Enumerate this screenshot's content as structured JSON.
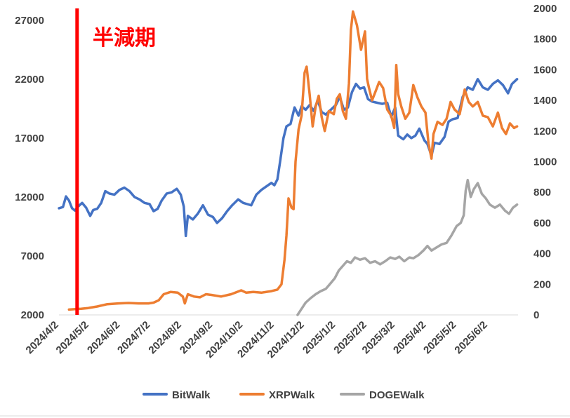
{
  "chart_data": {
    "type": "line",
    "title": "",
    "xlabel": "",
    "ylabel": "",
    "y2label": "",
    "x_tick_labels": [
      "2024/4/2",
      "2024/5/2",
      "2024/6/2",
      "2024/7/2",
      "2024/8/2",
      "2024/9/2",
      "2024/10/2",
      "2024/11/2",
      "2024/12/2",
      "2025/1/2",
      "2025/2/2",
      "2025/3/2",
      "2025/4/2",
      "2025/5/2",
      "2025/6/2"
    ],
    "x_range": [
      "2024-04-02",
      "2025-07-02"
    ],
    "y_left": {
      "range": [
        2000,
        28000
      ],
      "ticks": [
        2000,
        7000,
        12000,
        17000,
        22000,
        27000
      ],
      "tick_labels": [
        "2000",
        "7000",
        "12000",
        "17000",
        "22000",
        "27000"
      ]
    },
    "y_right": {
      "range": [
        0,
        2000
      ],
      "ticks": [
        0,
        200,
        400,
        600,
        800,
        1000,
        1200,
        1400,
        1600,
        1800,
        2000
      ],
      "tick_labels": [
        "0",
        "200",
        "400",
        "600",
        "800",
        "1000",
        "1200",
        "1400",
        "1600",
        "1800",
        "2000"
      ]
    },
    "grid": false,
    "legend": "bottom",
    "annotation": {
      "text": "半減期",
      "date": "2024-04-20",
      "color": "#ff0000"
    },
    "series": [
      {
        "name": "BitWalk",
        "axis": "left",
        "color": "#4472c4",
        "points": [
          [
            "2024-04-02",
            11050
          ],
          [
            "2024-04-06",
            11150
          ],
          [
            "2024-04-09",
            12050
          ],
          [
            "2024-04-12",
            11700
          ],
          [
            "2024-04-15",
            11050
          ],
          [
            "2024-04-18",
            10850
          ],
          [
            "2024-04-21",
            11200
          ],
          [
            "2024-04-25",
            11500
          ],
          [
            "2024-04-29",
            11100
          ],
          [
            "2024-05-03",
            10400
          ],
          [
            "2024-05-06",
            10900
          ],
          [
            "2024-05-10",
            11000
          ],
          [
            "2024-05-14",
            11500
          ],
          [
            "2024-05-18",
            12500
          ],
          [
            "2024-05-22",
            12300
          ],
          [
            "2024-05-27",
            12200
          ],
          [
            "2024-06-01",
            12600
          ],
          [
            "2024-06-06",
            12800
          ],
          [
            "2024-06-11",
            12500
          ],
          [
            "2024-06-16",
            12000
          ],
          [
            "2024-06-21",
            11800
          ],
          [
            "2024-06-26",
            11500
          ],
          [
            "2024-07-01",
            11400
          ],
          [
            "2024-07-05",
            10800
          ],
          [
            "2024-07-09",
            11000
          ],
          [
            "2024-07-13",
            11700
          ],
          [
            "2024-07-18",
            12300
          ],
          [
            "2024-07-23",
            12400
          ],
          [
            "2024-07-28",
            12700
          ],
          [
            "2024-08-01",
            12200
          ],
          [
            "2024-08-04",
            11200
          ],
          [
            "2024-08-06",
            8700
          ],
          [
            "2024-08-08",
            10400
          ],
          [
            "2024-08-13",
            10100
          ],
          [
            "2024-08-18",
            10600
          ],
          [
            "2024-08-23",
            11300
          ],
          [
            "2024-08-28",
            10500
          ],
          [
            "2024-09-02",
            10300
          ],
          [
            "2024-09-06",
            9800
          ],
          [
            "2024-09-11",
            10200
          ],
          [
            "2024-09-16",
            10800
          ],
          [
            "2024-09-21",
            11300
          ],
          [
            "2024-09-27",
            11800
          ],
          [
            "2024-10-02",
            11500
          ],
          [
            "2024-10-06",
            11400
          ],
          [
            "2024-10-10",
            11300
          ],
          [
            "2024-10-15",
            12200
          ],
          [
            "2024-10-20",
            12600
          ],
          [
            "2024-10-25",
            12900
          ],
          [
            "2024-10-30",
            13200
          ],
          [
            "2024-11-02",
            13000
          ],
          [
            "2024-11-05",
            13500
          ],
          [
            "2024-11-08",
            15200
          ],
          [
            "2024-11-11",
            17000
          ],
          [
            "2024-11-14",
            18000
          ],
          [
            "2024-11-18",
            18200
          ],
          [
            "2024-11-22",
            19600
          ],
          [
            "2024-11-26",
            18900
          ],
          [
            "2024-11-29",
            19700
          ],
          [
            "2024-12-03",
            19400
          ],
          [
            "2024-12-07",
            19800
          ],
          [
            "2024-12-11",
            19300
          ],
          [
            "2024-12-15",
            20200
          ],
          [
            "2024-12-19",
            19200
          ],
          [
            "2024-12-23",
            19000
          ],
          [
            "2024-12-28",
            19400
          ],
          [
            "2025-01-02",
            19800
          ],
          [
            "2025-01-06",
            20500
          ],
          [
            "2025-01-10",
            19400
          ],
          [
            "2025-01-14",
            19600
          ],
          [
            "2025-01-18",
            20900
          ],
          [
            "2025-01-22",
            21600
          ],
          [
            "2025-01-26",
            21200
          ],
          [
            "2025-01-30",
            21300
          ],
          [
            "2025-02-03",
            20300
          ],
          [
            "2025-02-07",
            20100
          ],
          [
            "2025-02-12",
            20000
          ],
          [
            "2025-02-17",
            19900
          ],
          [
            "2025-02-22",
            20000
          ],
          [
            "2025-02-26",
            18800
          ],
          [
            "2025-03-02",
            19600
          ],
          [
            "2025-03-05",
            17200
          ],
          [
            "2025-03-10",
            16900
          ],
          [
            "2025-03-14",
            17300
          ],
          [
            "2025-03-18",
            17000
          ],
          [
            "2025-03-22",
            17200
          ],
          [
            "2025-03-26",
            17800
          ],
          [
            "2025-03-31",
            16800
          ],
          [
            "2025-04-03",
            16500
          ],
          [
            "2025-04-07",
            15500
          ],
          [
            "2025-04-10",
            16600
          ],
          [
            "2025-04-15",
            16500
          ],
          [
            "2025-04-20",
            17100
          ],
          [
            "2025-04-24",
            18400
          ],
          [
            "2025-04-28",
            18600
          ],
          [
            "2025-05-03",
            18700
          ],
          [
            "2025-05-08",
            20500
          ],
          [
            "2025-05-13",
            21300
          ],
          [
            "2025-05-18",
            21100
          ],
          [
            "2025-05-23",
            22000
          ],
          [
            "2025-05-28",
            21300
          ],
          [
            "2025-06-02",
            21100
          ],
          [
            "2025-06-07",
            21600
          ],
          [
            "2025-06-12",
            21900
          ],
          [
            "2025-06-17",
            21500
          ],
          [
            "2025-06-22",
            20800
          ],
          [
            "2025-06-26",
            21600
          ],
          [
            "2025-07-01",
            22000
          ]
        ]
      },
      {
        "name": "XRPWalk",
        "axis": "right",
        "color": "#ed7d31",
        "points": [
          [
            "2024-04-12",
            35
          ],
          [
            "2024-04-18",
            38
          ],
          [
            "2024-04-24",
            40
          ],
          [
            "2024-05-01",
            45
          ],
          [
            "2024-05-10",
            55
          ],
          [
            "2024-05-20",
            70
          ],
          [
            "2024-05-31",
            75
          ],
          [
            "2024-06-10",
            78
          ],
          [
            "2024-06-20",
            75
          ],
          [
            "2024-06-30",
            75
          ],
          [
            "2024-07-05",
            80
          ],
          [
            "2024-07-10",
            95
          ],
          [
            "2024-07-15",
            135
          ],
          [
            "2024-07-22",
            150
          ],
          [
            "2024-07-29",
            145
          ],
          [
            "2024-08-03",
            120
          ],
          [
            "2024-08-05",
            75
          ],
          [
            "2024-08-08",
            135
          ],
          [
            "2024-08-14",
            120
          ],
          [
            "2024-08-20",
            115
          ],
          [
            "2024-08-26",
            135
          ],
          [
            "2024-09-01",
            130
          ],
          [
            "2024-09-10",
            120
          ],
          [
            "2024-09-20",
            135
          ],
          [
            "2024-09-30",
            160
          ],
          [
            "2024-10-05",
            145
          ],
          [
            "2024-10-12",
            150
          ],
          [
            "2024-10-20",
            145
          ],
          [
            "2024-10-30",
            155
          ],
          [
            "2024-11-05",
            165
          ],
          [
            "2024-11-09",
            200
          ],
          [
            "2024-11-12",
            360
          ],
          [
            "2024-11-14",
            520
          ],
          [
            "2024-11-16",
            760
          ],
          [
            "2024-11-19",
            700
          ],
          [
            "2024-11-21",
            690
          ],
          [
            "2024-11-23",
            1000
          ],
          [
            "2024-11-26",
            1210
          ],
          [
            "2024-11-29",
            1300
          ],
          [
            "2024-12-02",
            1580
          ],
          [
            "2024-12-04",
            1620
          ],
          [
            "2024-12-07",
            1440
          ],
          [
            "2024-12-10",
            1230
          ],
          [
            "2024-12-13",
            1360
          ],
          [
            "2024-12-16",
            1430
          ],
          [
            "2024-12-19",
            1290
          ],
          [
            "2024-12-22",
            1200
          ],
          [
            "2024-12-26",
            1330
          ],
          [
            "2024-12-31",
            1310
          ],
          [
            "2025-01-03",
            1410
          ],
          [
            "2025-01-06",
            1440
          ],
          [
            "2025-01-09",
            1330
          ],
          [
            "2025-01-12",
            1280
          ],
          [
            "2025-01-15",
            1510
          ],
          [
            "2025-01-17",
            1860
          ],
          [
            "2025-01-19",
            1980
          ],
          [
            "2025-01-23",
            1890
          ],
          [
            "2025-01-27",
            1730
          ],
          [
            "2025-01-31",
            1850
          ],
          [
            "2025-02-02",
            1540
          ],
          [
            "2025-02-04",
            1480
          ],
          [
            "2025-02-07",
            1400
          ],
          [
            "2025-02-10",
            1450
          ],
          [
            "2025-02-14",
            1520
          ],
          [
            "2025-02-18",
            1480
          ],
          [
            "2025-02-22",
            1340
          ],
          [
            "2025-02-26",
            1300
          ],
          [
            "2025-03-01",
            1220
          ],
          [
            "2025-03-03",
            1630
          ],
          [
            "2025-03-05",
            1440
          ],
          [
            "2025-03-08",
            1360
          ],
          [
            "2025-03-12",
            1280
          ],
          [
            "2025-03-16",
            1320
          ],
          [
            "2025-03-20",
            1500
          ],
          [
            "2025-03-24",
            1420
          ],
          [
            "2025-03-28",
            1360
          ],
          [
            "2025-04-01",
            1320
          ],
          [
            "2025-04-04",
            1120
          ],
          [
            "2025-04-07",
            1020
          ],
          [
            "2025-04-09",
            1180
          ],
          [
            "2025-04-13",
            1260
          ],
          [
            "2025-04-18",
            1240
          ],
          [
            "2025-04-22",
            1280
          ],
          [
            "2025-04-26",
            1390
          ],
          [
            "2025-04-30",
            1340
          ],
          [
            "2025-05-05",
            1310
          ],
          [
            "2025-05-10",
            1470
          ],
          [
            "2025-05-14",
            1390
          ],
          [
            "2025-05-18",
            1360
          ],
          [
            "2025-05-23",
            1390
          ],
          [
            "2025-05-28",
            1300
          ],
          [
            "2025-06-02",
            1290
          ],
          [
            "2025-06-07",
            1230
          ],
          [
            "2025-06-12",
            1320
          ],
          [
            "2025-06-16",
            1220
          ],
          [
            "2025-06-20",
            1180
          ],
          [
            "2025-06-24",
            1250
          ],
          [
            "2025-06-28",
            1220
          ],
          [
            "2025-07-01",
            1230
          ]
        ]
      },
      {
        "name": "DOGEWalk",
        "axis": "right",
        "color": "#a5a5a5",
        "points": [
          [
            "2024-11-25",
            0
          ],
          [
            "2024-11-29",
            40
          ],
          [
            "2024-12-03",
            80
          ],
          [
            "2024-12-08",
            110
          ],
          [
            "2024-12-13",
            135
          ],
          [
            "2024-12-18",
            155
          ],
          [
            "2024-12-23",
            170
          ],
          [
            "2024-12-27",
            200
          ],
          [
            "2025-01-01",
            240
          ],
          [
            "2025-01-05",
            290
          ],
          [
            "2025-01-09",
            320
          ],
          [
            "2025-01-13",
            350
          ],
          [
            "2025-01-17",
            340
          ],
          [
            "2025-01-21",
            375
          ],
          [
            "2025-01-26",
            360
          ],
          [
            "2025-01-31",
            370
          ],
          [
            "2025-02-05",
            340
          ],
          [
            "2025-02-10",
            350
          ],
          [
            "2025-02-15",
            330
          ],
          [
            "2025-02-20",
            350
          ],
          [
            "2025-02-25",
            375
          ],
          [
            "2025-03-02",
            365
          ],
          [
            "2025-03-06",
            380
          ],
          [
            "2025-03-11",
            350
          ],
          [
            "2025-03-16",
            375
          ],
          [
            "2025-03-20",
            370
          ],
          [
            "2025-03-25",
            390
          ],
          [
            "2025-03-30",
            420
          ],
          [
            "2025-04-03",
            450
          ],
          [
            "2025-04-07",
            420
          ],
          [
            "2025-04-12",
            440
          ],
          [
            "2025-04-17",
            460
          ],
          [
            "2025-04-22",
            470
          ],
          [
            "2025-04-27",
            520
          ],
          [
            "2025-05-02",
            580
          ],
          [
            "2025-05-06",
            600
          ],
          [
            "2025-05-09",
            650
          ],
          [
            "2025-05-11",
            810
          ],
          [
            "2025-05-13",
            880
          ],
          [
            "2025-05-16",
            770
          ],
          [
            "2025-05-19",
            820
          ],
          [
            "2025-05-23",
            860
          ],
          [
            "2025-05-27",
            790
          ],
          [
            "2025-05-31",
            760
          ],
          [
            "2025-06-04",
            720
          ],
          [
            "2025-06-09",
            700
          ],
          [
            "2025-06-14",
            720
          ],
          [
            "2025-06-19",
            680
          ],
          [
            "2025-06-23",
            660
          ],
          [
            "2025-06-27",
            700
          ],
          [
            "2025-07-01",
            720
          ]
        ]
      }
    ]
  }
}
